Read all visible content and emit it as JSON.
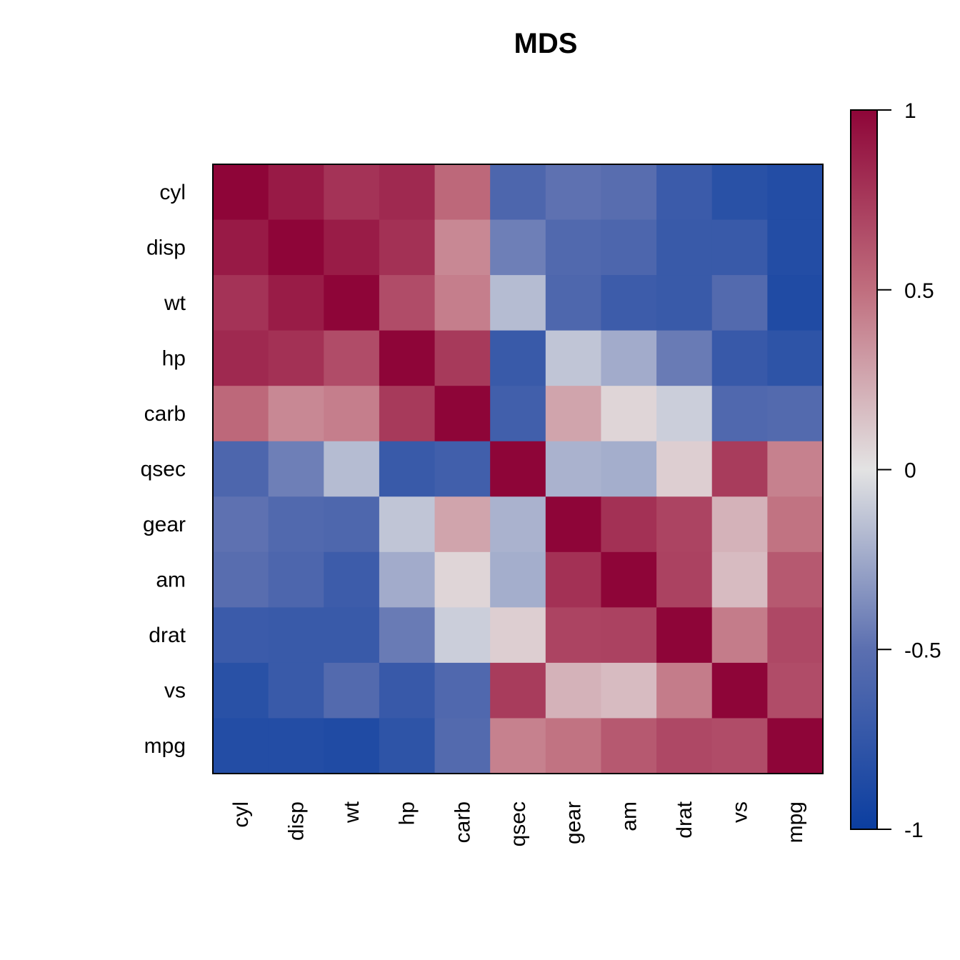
{
  "chart_data": {
    "type": "heatmap",
    "title": "MDS",
    "variables": [
      "cyl",
      "disp",
      "wt",
      "hp",
      "carb",
      "qsec",
      "gear",
      "am",
      "drat",
      "vs",
      "mpg"
    ],
    "matrix": [
      [
        1.0,
        0.9,
        0.78,
        0.83,
        0.53,
        -0.59,
        -0.49,
        -0.52,
        -0.7,
        -0.81,
        -0.85
      ],
      [
        0.9,
        1.0,
        0.89,
        0.79,
        0.39,
        -0.43,
        -0.56,
        -0.59,
        -0.71,
        -0.71,
        -0.85
      ],
      [
        0.78,
        0.89,
        1.0,
        0.66,
        0.43,
        -0.17,
        -0.58,
        -0.69,
        -0.71,
        -0.55,
        -0.87
      ],
      [
        0.83,
        0.79,
        0.66,
        1.0,
        0.75,
        -0.71,
        -0.13,
        -0.24,
        -0.45,
        -0.72,
        -0.78
      ],
      [
        0.53,
        0.39,
        0.43,
        0.75,
        1.0,
        -0.66,
        0.27,
        0.06,
        -0.09,
        -0.57,
        -0.55
      ],
      [
        -0.59,
        -0.43,
        -0.17,
        -0.71,
        -0.66,
        1.0,
        -0.21,
        -0.23,
        0.09,
        0.74,
        0.42
      ],
      [
        -0.49,
        -0.56,
        -0.58,
        -0.13,
        0.27,
        -0.21,
        1.0,
        0.79,
        0.7,
        0.21,
        0.48
      ],
      [
        -0.52,
        -0.59,
        -0.69,
        -0.24,
        0.06,
        -0.23,
        0.79,
        1.0,
        0.71,
        0.17,
        0.6
      ],
      [
        -0.7,
        -0.71,
        -0.71,
        -0.45,
        -0.09,
        0.09,
        0.7,
        0.71,
        1.0,
        0.44,
        0.68
      ],
      [
        -0.81,
        -0.71,
        -0.55,
        -0.72,
        -0.57,
        0.74,
        0.21,
        0.17,
        0.44,
        1.0,
        0.66
      ],
      [
        -0.85,
        -0.85,
        -0.87,
        -0.78,
        -0.55,
        0.42,
        0.48,
        0.6,
        0.68,
        0.66,
        1.0
      ]
    ],
    "color_scale": {
      "min": -1,
      "max": 1,
      "low_color": "#053061",
      "stops": [
        "#0B3EA0",
        "#5B6FB0",
        "#E3E3E3",
        "#C06E7E",
        "#8E0538"
      ],
      "ticks": [
        1,
        0.5,
        0,
        -0.5,
        -1
      ],
      "tick_labels": [
        "1",
        "0.5",
        "0",
        "-0.5",
        "-1"
      ],
      "position": "right"
    },
    "grid": false
  }
}
